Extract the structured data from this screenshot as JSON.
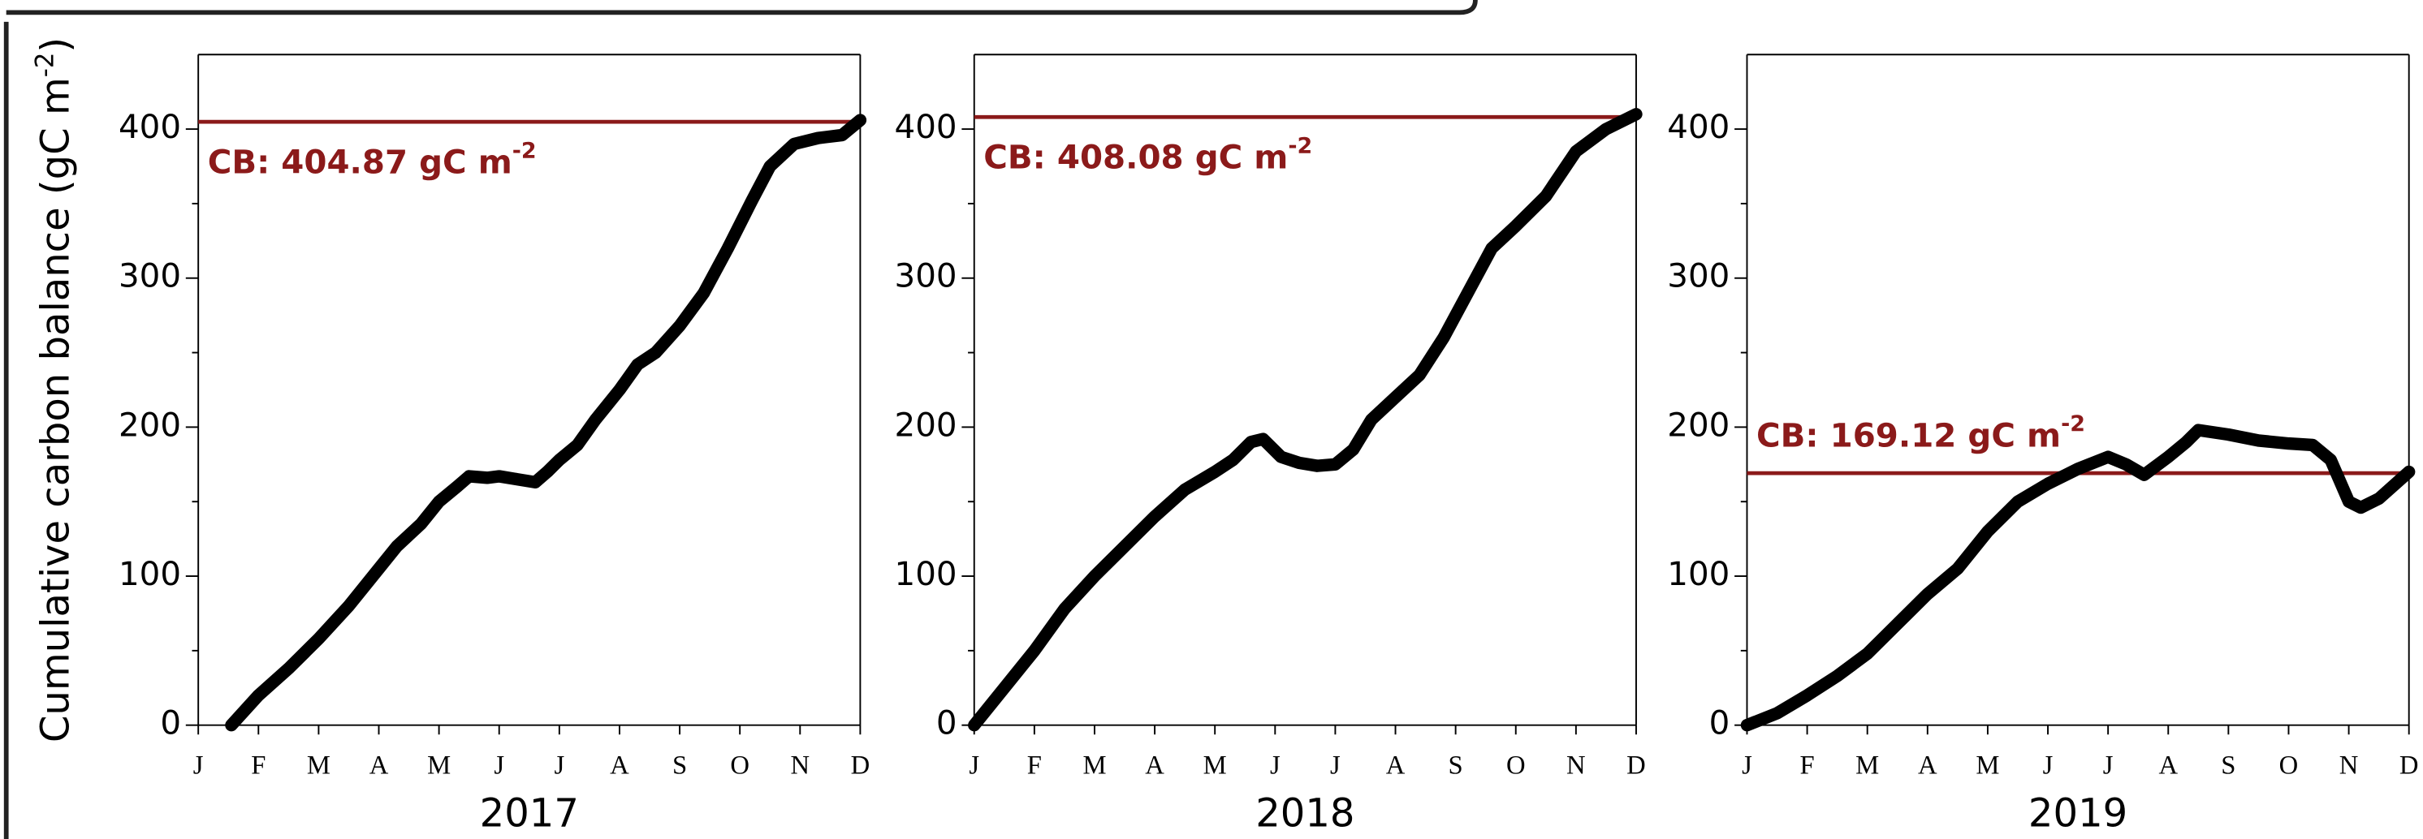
{
  "chart_data": [
    {
      "type": "line",
      "title": "2017",
      "ylabel": {
        "text": "Cumulative carbon balance (gC m",
        "sup": "-2",
        "tail": ")"
      },
      "xlim": [
        0,
        11
      ],
      "xticks": [
        {
          "value": 0,
          "label": "J"
        },
        {
          "value": 1,
          "label": "F"
        },
        {
          "value": 2,
          "label": "M"
        },
        {
          "value": 3,
          "label": "A"
        },
        {
          "value": 4,
          "label": "M"
        },
        {
          "value": 5,
          "label": "J"
        },
        {
          "value": 6,
          "label": "J"
        },
        {
          "value": 7,
          "label": "A"
        },
        {
          "value": 8,
          "label": "S"
        },
        {
          "value": 9,
          "label": "O"
        },
        {
          "value": 10,
          "label": "N"
        },
        {
          "value": 11,
          "label": "D"
        }
      ],
      "ylim": [
        0,
        450
      ],
      "yticks": [
        0,
        100,
        200,
        300,
        400
      ],
      "series": [
        {
          "color": "#000000",
          "x": [
            0.55,
            1,
            1.5,
            2,
            2.5,
            3,
            3.3,
            3.7,
            4,
            4.3,
            4.5,
            4.8,
            5,
            5.3,
            5.6,
            5.8,
            6,
            6.3,
            6.6,
            7,
            7.3,
            7.6,
            8,
            8.4,
            8.8,
            9.2,
            9.5,
            9.9,
            10.3,
            10.7,
            11
          ],
          "values": [
            0,
            20,
            38,
            58,
            80,
            105,
            120,
            135,
            150,
            160,
            167,
            166,
            167,
            165,
            163,
            170,
            178,
            188,
            205,
            225,
            242,
            250,
            268,
            290,
            320,
            352,
            375,
            390,
            394,
            396,
            406
          ]
        }
      ],
      "hline": {
        "value": 404.87,
        "color": "#8b1a1a",
        "label": "CB: 404.87 gC m",
        "label_sup": "-2"
      }
    },
    {
      "type": "line",
      "title": "2018",
      "xlim": [
        0,
        11
      ],
      "xticks": [
        {
          "value": 0,
          "label": "J"
        },
        {
          "value": 1,
          "label": "F"
        },
        {
          "value": 2,
          "label": "M"
        },
        {
          "value": 3,
          "label": "A"
        },
        {
          "value": 4,
          "label": "M"
        },
        {
          "value": 5,
          "label": "J"
        },
        {
          "value": 6,
          "label": "J"
        },
        {
          "value": 7,
          "label": "A"
        },
        {
          "value": 8,
          "label": "S"
        },
        {
          "value": 9,
          "label": "O"
        },
        {
          "value": 10,
          "label": "N"
        },
        {
          "value": 11,
          "label": "D"
        }
      ],
      "ylim": [
        0,
        450
      ],
      "yticks": [
        0,
        100,
        200,
        300,
        400
      ],
      "series": [
        {
          "color": "#000000",
          "x": [
            0,
            0.5,
            1,
            1.5,
            2,
            2.5,
            3,
            3.5,
            4,
            4.3,
            4.6,
            4.8,
            5.1,
            5.4,
            5.7,
            6,
            6.3,
            6.6,
            7,
            7.4,
            7.8,
            8.2,
            8.6,
            9,
            9.5,
            10,
            10.5,
            11
          ],
          "values": [
            0,
            25,
            50,
            78,
            100,
            120,
            140,
            158,
            170,
            178,
            190,
            192,
            180,
            176,
            174,
            175,
            185,
            205,
            220,
            235,
            260,
            290,
            320,
            335,
            355,
            385,
            400,
            410
          ]
        }
      ],
      "hline": {
        "value": 408.08,
        "color": "#8b1a1a",
        "label": "CB: 408.08 gC m",
        "label_sup": "-2"
      }
    },
    {
      "type": "line",
      "title": "2019",
      "xlim": [
        0,
        11
      ],
      "xticks": [
        {
          "value": 0,
          "label": "J"
        },
        {
          "value": 1,
          "label": "F"
        },
        {
          "value": 2,
          "label": "M"
        },
        {
          "value": 3,
          "label": "A"
        },
        {
          "value": 4,
          "label": "M"
        },
        {
          "value": 5,
          "label": "J"
        },
        {
          "value": 6,
          "label": "J"
        },
        {
          "value": 7,
          "label": "A"
        },
        {
          "value": 8,
          "label": "S"
        },
        {
          "value": 9,
          "label": "O"
        },
        {
          "value": 10,
          "label": "N"
        },
        {
          "value": 11,
          "label": "D"
        }
      ],
      "ylim": [
        0,
        450
      ],
      "yticks": [
        0,
        100,
        200,
        300,
        400
      ],
      "series": [
        {
          "color": "#000000",
          "x": [
            0,
            0.5,
            1,
            1.5,
            2,
            2.5,
            3,
            3.5,
            4,
            4.5,
            5,
            5.5,
            6,
            6.3,
            6.6,
            7,
            7.3,
            7.5,
            8,
            8.5,
            9,
            9.4,
            9.7,
            10,
            10.2,
            10.5,
            11
          ],
          "values": [
            0,
            8,
            20,
            33,
            48,
            68,
            88,
            105,
            130,
            150,
            162,
            172,
            180,
            175,
            168,
            180,
            190,
            198,
            195,
            191,
            189,
            188,
            178,
            150,
            146,
            152,
            170
          ]
        }
      ],
      "hline": {
        "value": 169.12,
        "color": "#8b1a1a",
        "label": "CB: 169.12 gC m",
        "label_sup": "-2"
      }
    }
  ]
}
